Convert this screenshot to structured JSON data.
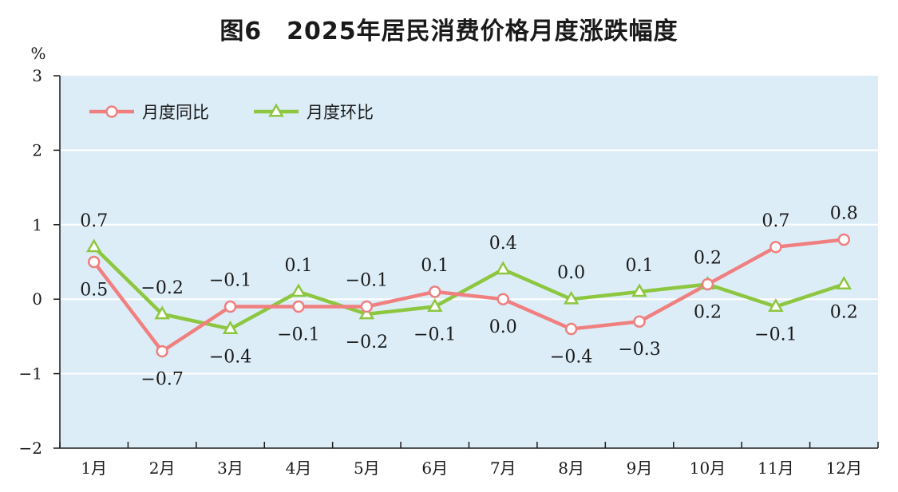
{
  "chart_data": {
    "type": "line",
    "title": "图6　2025年居民消费价格月度涨跌幅度",
    "ylabel": "%",
    "xlabel": "",
    "categories": [
      "1月",
      "2月",
      "3月",
      "4月",
      "5月",
      "6月",
      "7月",
      "8月",
      "9月",
      "10月",
      "11月",
      "12月"
    ],
    "ylim": [
      -2,
      3
    ],
    "yticks": [
      -2,
      -1,
      0,
      1,
      2,
      3
    ],
    "grid": true,
    "legend_position": "top-left",
    "series": [
      {
        "name": "月度同比",
        "color": "#f08080",
        "marker": "circle",
        "values": [
          0.5,
          -0.7,
          -0.1,
          -0.1,
          -0.1,
          0.1,
          0.0,
          -0.4,
          -0.3,
          0.2,
          0.7,
          0.8
        ],
        "labels": [
          "0.5",
          "-0.7",
          "-0.1",
          "-0.1",
          "-0.1",
          "0.1",
          "0.0",
          "-0.4",
          "-0.3",
          "0.2",
          "0.7",
          "0.8"
        ]
      },
      {
        "name": "月度环比",
        "color": "#8dc63f",
        "marker": "triangle",
        "values": [
          0.7,
          -0.2,
          -0.4,
          0.1,
          -0.2,
          -0.1,
          0.4,
          0.0,
          0.1,
          0.2,
          -0.1,
          0.2
        ],
        "labels": [
          "0.7",
          "-0.2",
          "-0.4",
          "0.1",
          "-0.2",
          "-0.1",
          "0.4",
          "0.0",
          "0.1",
          "0.2",
          "-0.1",
          "0.2"
        ]
      }
    ]
  }
}
